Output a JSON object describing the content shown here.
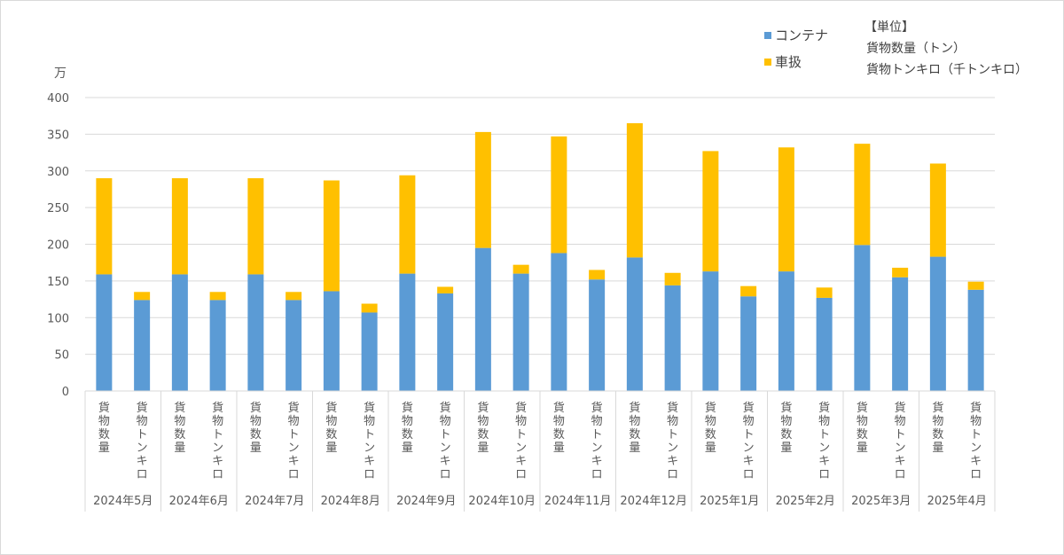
{
  "chart_data": {
    "type": "bar",
    "stacked": true,
    "y_unit": "万",
    "ylim": [
      0,
      400
    ],
    "yticks": [
      0,
      50,
      100,
      150,
      200,
      250,
      300,
      350,
      400
    ],
    "grid": true,
    "legend_position": "top-right",
    "groups": [
      "2024年5月",
      "2024年6月",
      "2024年7月",
      "2024年8月",
      "2024年9月",
      "2024年10月",
      "2024年11月",
      "2024年12月",
      "2025年1月",
      "2025年2月",
      "2025年3月",
      "2025年4月"
    ],
    "sub_categories": [
      "貨物数量",
      "貨物トンキロ"
    ],
    "series": [
      {
        "name": "コンテナ",
        "color": "#5b9bd5",
        "values": [
          [
            159,
            124
          ],
          [
            159,
            124
          ],
          [
            159,
            124
          ],
          [
            136,
            107
          ],
          [
            160,
            133
          ],
          [
            195,
            160
          ],
          [
            188,
            152
          ],
          [
            182,
            144
          ],
          [
            163,
            129
          ],
          [
            163,
            127
          ],
          [
            199,
            155
          ],
          [
            183,
            138
          ]
        ]
      },
      {
        "name": "車扱",
        "color": "#ffc000",
        "values": [
          [
            131,
            11
          ],
          [
            131,
            11
          ],
          [
            131,
            11
          ],
          [
            151,
            12
          ],
          [
            134,
            9
          ],
          [
            158,
            12
          ],
          [
            159,
            13
          ],
          [
            183,
            17
          ],
          [
            164,
            14
          ],
          [
            169,
            14
          ],
          [
            138,
            13
          ],
          [
            127,
            11
          ]
        ]
      }
    ],
    "unit_note": {
      "title": "【単位】",
      "lines": [
        "貨物数量（トン）",
        "貨物トンキロ（千トンキロ）"
      ]
    }
  }
}
